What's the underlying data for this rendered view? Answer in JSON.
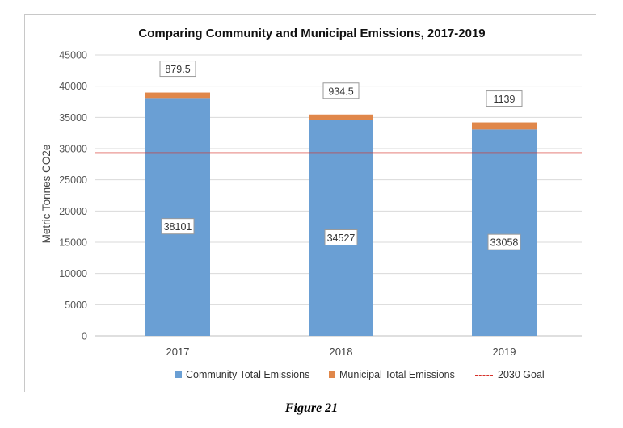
{
  "figure_caption": "Figure 21",
  "colors": {
    "community": "#6a9fd4",
    "municipal": "#e0874a",
    "goal": "#d6322a"
  },
  "chart_data": {
    "type": "bar",
    "stacked": true,
    "title": "Comparing Community and Municipal Emissions, 2017-2019",
    "xlabel": "",
    "ylabel": "Metric Tonnes CO2e",
    "categories": [
      "2017",
      "2018",
      "2019"
    ],
    "series": [
      {
        "name": "Community Total Emissions",
        "values": [
          38101,
          34527,
          33058
        ]
      },
      {
        "name": "Municipal Total Emissions",
        "values": [
          879.5,
          934.5,
          1139
        ]
      }
    ],
    "data_labels": {
      "community": [
        "38101",
        "34527",
        "33058"
      ],
      "municipal": [
        "879.5",
        "934.5",
        "1139"
      ]
    },
    "reference_line": {
      "name": "2030 Goal",
      "value": 29300
    },
    "ylim": [
      0,
      45000
    ],
    "yticks": [
      0,
      5000,
      10000,
      15000,
      20000,
      25000,
      30000,
      35000,
      40000,
      45000
    ],
    "grid": true,
    "legend_position": "bottom"
  }
}
